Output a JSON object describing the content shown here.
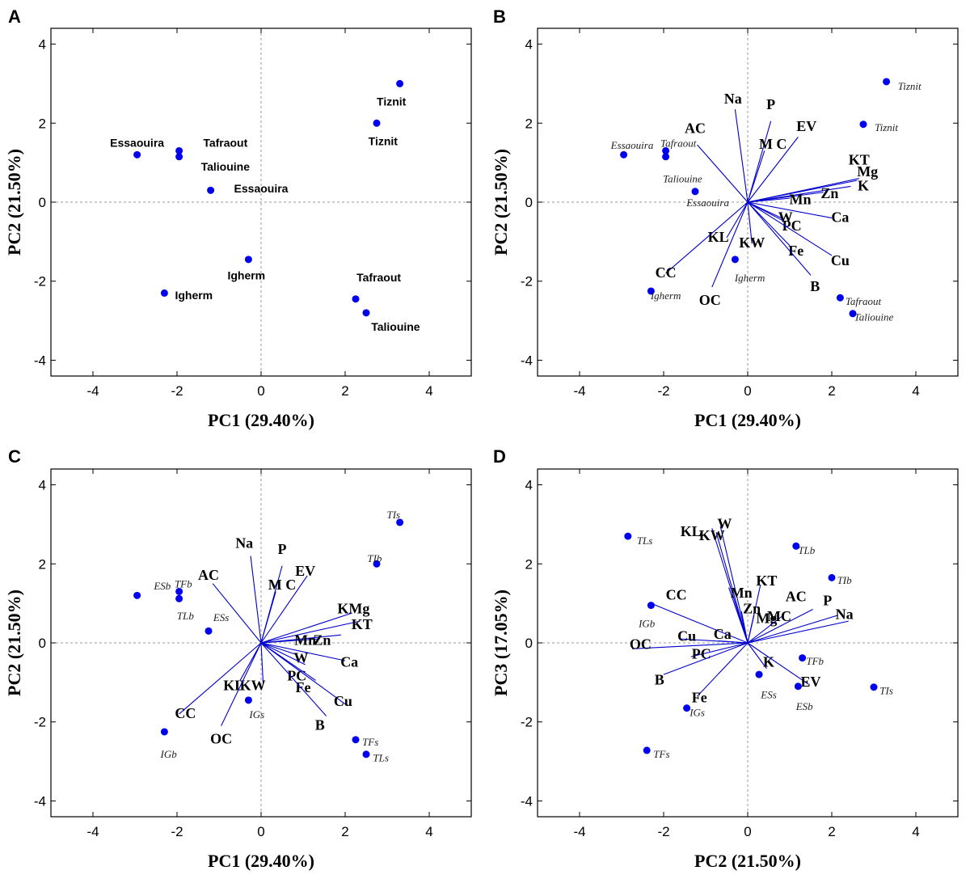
{
  "chart_data": [
    {
      "panel": "A",
      "type": "scatter",
      "xlabel": "PC1 (29.40%)",
      "ylabel": "PC2 (21.50%)",
      "xlim": [
        -5,
        5
      ],
      "ylim": [
        -4.4,
        4.4
      ],
      "xticks": [
        -4,
        -2,
        0,
        2,
        4
      ],
      "yticks": [
        -4,
        -2,
        0,
        2,
        4
      ],
      "point_color": "#0000ee",
      "vector_color": "#0000cc",
      "label_style": "sans",
      "points": [
        {
          "x": 3.3,
          "y": 3.0,
          "label": "Tiznit",
          "lx": 3.1,
          "ly": 2.55
        },
        {
          "x": 2.75,
          "y": 2.0,
          "label": "Tiznit",
          "lx": 2.9,
          "ly": 1.55
        },
        {
          "x": -2.95,
          "y": 1.2,
          "label": "Essaouira",
          "lx": -2.95,
          "ly": 1.5
        },
        {
          "x": -1.95,
          "y": 1.3,
          "label": "Tafraout",
          "lx": -0.85,
          "ly": 1.5
        },
        {
          "x": -1.95,
          "y": 1.15,
          "label": "Taliouine",
          "lx": -0.85,
          "ly": 0.9
        },
        {
          "x": -1.2,
          "y": 0.3,
          "label": "Essaouira",
          "lx": 0.0,
          "ly": 0.35
        },
        {
          "x": -0.3,
          "y": -1.45,
          "label": "Igherm",
          "lx": -0.35,
          "ly": -1.85
        },
        {
          "x": -2.3,
          "y": -2.3,
          "label": "Igherm",
          "lx": -1.6,
          "ly": -2.35
        },
        {
          "x": 2.25,
          "y": -2.45,
          "label": "Tafraout",
          "lx": 2.8,
          "ly": -1.9
        },
        {
          "x": 2.5,
          "y": -2.8,
          "label": "Taliouine",
          "lx": 3.2,
          "ly": -3.15
        }
      ],
      "vectors": []
    },
    {
      "panel": "B",
      "type": "biplot",
      "xlabel": "PC1 (29.40%)",
      "ylabel": "PC2 (21.50%)",
      "xlim": [
        -5,
        5
      ],
      "ylim": [
        -4.4,
        4.4
      ],
      "xticks": [
        -4,
        -2,
        0,
        2,
        4
      ],
      "yticks": [
        -4,
        -2,
        0,
        2,
        4
      ],
      "point_color": "#0000ee",
      "vector_color": "#0000cc",
      "label_style": "italic",
      "points": [
        {
          "x": 3.3,
          "y": 3.05,
          "label": "Tiznit",
          "lx": 3.85,
          "ly": 2.95
        },
        {
          "x": 2.75,
          "y": 1.97,
          "label": "Tiznit",
          "lx": 3.3,
          "ly": 1.9
        },
        {
          "x": -2.95,
          "y": 1.2,
          "label": "Essaouira",
          "lx": -2.75,
          "ly": 1.45
        },
        {
          "x": -1.95,
          "y": 1.3,
          "label": "Tafraout",
          "lx": -1.65,
          "ly": 1.5
        },
        {
          "x": -1.95,
          "y": 1.15,
          "label": "Taliouine",
          "lx": -1.55,
          "ly": 0.6
        },
        {
          "x": -1.25,
          "y": 0.27,
          "label": "Essaouira",
          "lx": -0.95,
          "ly": 0.0
        },
        {
          "x": -0.3,
          "y": -1.45,
          "label": "Igherm",
          "lx": 0.05,
          "ly": -1.9
        },
        {
          "x": -2.3,
          "y": -2.25,
          "label": "Igherm",
          "lx": -1.95,
          "ly": -2.35
        },
        {
          "x": 2.2,
          "y": -2.42,
          "label": "Tafraout",
          "lx": 2.75,
          "ly": -2.5
        },
        {
          "x": 2.5,
          "y": -2.82,
          "label": "Taliouine",
          "lx": 3.0,
          "ly": -2.9
        }
      ],
      "vectors": [
        {
          "name": "Na",
          "x": -0.3,
          "y": 2.35,
          "lx": -0.35,
          "ly": 2.5
        },
        {
          "name": "P",
          "x": 0.55,
          "y": 2.05,
          "lx": 0.55,
          "ly": 2.35
        },
        {
          "name": "EV",
          "x": 1.2,
          "y": 1.65,
          "lx": 1.4,
          "ly": 1.8
        },
        {
          "name": "AC",
          "x": -1.2,
          "y": 1.45,
          "lx": -1.25,
          "ly": 1.75
        },
        {
          "name": "M C",
          "x": 0.4,
          "y": 1.3,
          "lx": 0.6,
          "ly": 1.35
        },
        {
          "name": "KT",
          "x": 2.6,
          "y": 0.55,
          "lx": 2.65,
          "ly": 0.95
        },
        {
          "name": "Mg",
          "x": 2.65,
          "y": 0.6,
          "lx": 2.85,
          "ly": 0.65
        },
        {
          "name": "K",
          "x": 2.45,
          "y": 0.4,
          "lx": 2.75,
          "ly": 0.3
        },
        {
          "name": "Zn",
          "x": 1.8,
          "y": 0.25,
          "lx": 1.95,
          "ly": 0.1
        },
        {
          "name": "Mn",
          "x": 1.0,
          "y": 0.1,
          "lx": 1.25,
          "ly": -0.05
        },
        {
          "name": "Ca",
          "x": 2.0,
          "y": -0.4,
          "lx": 2.2,
          "ly": -0.5
        },
        {
          "name": "W",
          "x": 0.8,
          "y": -0.4,
          "lx": 0.9,
          "ly": -0.5
        },
        {
          "name": "PC",
          "x": 0.9,
          "y": -0.5,
          "lx": 1.05,
          "ly": -0.72
        },
        {
          "name": "Cu",
          "x": 2.0,
          "y": -1.35,
          "lx": 2.2,
          "ly": -1.6
        },
        {
          "name": "Fe",
          "x": 1.0,
          "y": -1.1,
          "lx": 1.15,
          "ly": -1.35
        },
        {
          "name": "B",
          "x": 1.5,
          "y": -1.85,
          "lx": 1.6,
          "ly": -2.25
        },
        {
          "name": "KW",
          "x": 0.1,
          "y": -1.05,
          "lx": 0.1,
          "ly": -1.15
        },
        {
          "name": "KL",
          "x": -0.5,
          "y": -0.9,
          "lx": -0.7,
          "ly": -1.0
        },
        {
          "name": "CC",
          "x": -1.95,
          "y": -1.8,
          "lx": -1.95,
          "ly": -1.9
        },
        {
          "name": "OC",
          "x": -0.85,
          "y": -2.15,
          "lx": -0.9,
          "ly": -2.6
        }
      ]
    },
    {
      "panel": "C",
      "type": "biplot",
      "xlabel": "PC1 (29.40%)",
      "ylabel": "PC2 (21.50%)",
      "xlim": [
        -5,
        5
      ],
      "ylim": [
        -4.4,
        4.4
      ],
      "xticks": [
        -4,
        -2,
        0,
        2,
        4
      ],
      "yticks": [
        -4,
        -2,
        0,
        2,
        4
      ],
      "point_color": "#0000ee",
      "vector_color": "#0000cc",
      "label_style": "italic",
      "points": [
        {
          "x": 3.3,
          "y": 3.05,
          "label": "TIs",
          "lx": 3.15,
          "ly": 3.25
        },
        {
          "x": 2.75,
          "y": 2.0,
          "label": "TIb",
          "lx": 2.7,
          "ly": 2.15
        },
        {
          "x": -2.95,
          "y": 1.2,
          "label": "ESb",
          "lx": -2.35,
          "ly": 1.45
        },
        {
          "x": -1.95,
          "y": 1.3,
          "label": "TFb",
          "lx": -1.85,
          "ly": 1.5
        },
        {
          "x": -1.95,
          "y": 1.12,
          "label": "TLb",
          "lx": -1.8,
          "ly": 0.7
        },
        {
          "x": -1.25,
          "y": 0.3,
          "label": "ESs",
          "lx": -0.95,
          "ly": 0.65
        },
        {
          "x": -0.3,
          "y": -1.45,
          "label": "IGs",
          "lx": -0.1,
          "ly": -1.8
        },
        {
          "x": -2.3,
          "y": -2.25,
          "label": "IGb",
          "lx": -2.2,
          "ly": -2.8
        },
        {
          "x": 2.25,
          "y": -2.45,
          "label": "TFs",
          "lx": 2.6,
          "ly": -2.5
        },
        {
          "x": 2.5,
          "y": -2.82,
          "label": "TLs",
          "lx": 2.85,
          "ly": -2.9
        }
      ],
      "vectors": [
        {
          "name": "Na",
          "x": -0.25,
          "y": 2.2,
          "lx": -0.4,
          "ly": 2.4
        },
        {
          "name": "P",
          "x": 0.5,
          "y": 1.95,
          "lx": 0.5,
          "ly": 2.25
        },
        {
          "name": "EV",
          "x": 1.1,
          "y": 1.7,
          "lx": 1.05,
          "ly": 1.7
        },
        {
          "name": "AC",
          "x": -1.15,
          "y": 1.5,
          "lx": -1.25,
          "ly": 1.6
        },
        {
          "name": "M C",
          "x": 0.35,
          "y": 1.3,
          "lx": 0.5,
          "ly": 1.35
        },
        {
          "name": "KMg",
          "x": 2.15,
          "y": 0.75,
          "lx": 2.2,
          "ly": 0.75
        },
        {
          "name": "KT",
          "x": 2.35,
          "y": 0.55,
          "lx": 2.4,
          "ly": 0.35
        },
        {
          "name": "Zn",
          "x": 1.9,
          "y": 0.2,
          "lx": 1.45,
          "ly": -0.05
        },
        {
          "name": "Mn",
          "x": 1.35,
          "y": 0.1,
          "lx": 1.05,
          "ly": -0.05
        },
        {
          "name": "Ca",
          "x": 2.0,
          "y": -0.45,
          "lx": 2.1,
          "ly": -0.6
        },
        {
          "name": "W",
          "x": 0.85,
          "y": -0.3,
          "lx": 0.95,
          "ly": -0.5
        },
        {
          "name": "PC",
          "x": 1.05,
          "y": -0.55,
          "lx": 0.85,
          "ly": -0.95
        },
        {
          "name": "Fe",
          "x": 1.3,
          "y": -0.95,
          "lx": 1.0,
          "ly": -1.25
        },
        {
          "name": "Cu",
          "x": 2.0,
          "y": -1.55,
          "lx": 1.95,
          "ly": -1.6
        },
        {
          "name": "B",
          "x": 1.55,
          "y": -1.85,
          "lx": 1.4,
          "ly": -2.2
        },
        {
          "name": "KW",
          "x": 0.05,
          "y": -1.05,
          "lx": -0.2,
          "ly": -1.2
        },
        {
          "name": "KL",
          "x": -0.5,
          "y": -0.95,
          "lx": -0.65,
          "ly": -1.2
        },
        {
          "name": "CC",
          "x": -1.95,
          "y": -1.8,
          "lx": -1.8,
          "ly": -1.9
        },
        {
          "name": "OC",
          "x": -0.95,
          "y": -2.1,
          "lx": -0.95,
          "ly": -2.55
        }
      ]
    },
    {
      "panel": "D",
      "type": "biplot",
      "xlabel": "PC2 (21.50%)",
      "ylabel": "PC3 (17.05%)",
      "xlim": [
        -5,
        5
      ],
      "ylim": [
        -4.4,
        4.4
      ],
      "xticks": [
        -4,
        -2,
        0,
        2,
        4
      ],
      "yticks": [
        -4,
        -2,
        0,
        2,
        4
      ],
      "point_color": "#0000ee",
      "vector_color": "#0000cc",
      "label_style": "italic",
      "points": [
        {
          "x": -2.85,
          "y": 2.7,
          "label": "TLs",
          "lx": -2.45,
          "ly": 2.6
        },
        {
          "x": 1.15,
          "y": 2.45,
          "label": "TLb",
          "lx": 1.4,
          "ly": 2.35
        },
        {
          "x": 2.0,
          "y": 1.65,
          "label": "TIb",
          "lx": 2.3,
          "ly": 1.6
        },
        {
          "x": -2.3,
          "y": 0.95,
          "label": "IGb",
          "lx": -2.4,
          "ly": 0.5
        },
        {
          "x": 1.3,
          "y": -0.38,
          "label": "TFb",
          "lx": 1.6,
          "ly": -0.45
        },
        {
          "x": 0.27,
          "y": -0.8,
          "label": "ESs",
          "lx": 0.5,
          "ly": -1.3
        },
        {
          "x": 1.2,
          "y": -1.1,
          "label": "ESb",
          "lx": 1.35,
          "ly": -1.6
        },
        {
          "x": 3.0,
          "y": -1.12,
          "label": "TIs",
          "lx": 3.3,
          "ly": -1.2
        },
        {
          "x": -1.45,
          "y": -1.65,
          "label": "IGs",
          "lx": -1.2,
          "ly": -1.75
        },
        {
          "x": -2.4,
          "y": -2.72,
          "label": "TFs",
          "lx": -2.05,
          "ly": -2.8
        }
      ],
      "vectors": [
        {
          "name": "KL",
          "x": -0.85,
          "y": 2.9,
          "lx": -1.35,
          "ly": 2.7
        },
        {
          "name": "W",
          "x": -0.65,
          "y": 2.95,
          "lx": -0.55,
          "ly": 2.9
        },
        {
          "name": "KW",
          "x": -0.75,
          "y": 2.8,
          "lx": -0.85,
          "ly": 2.6
        },
        {
          "name": "Mn",
          "x": -0.45,
          "y": 1.4,
          "lx": -0.15,
          "ly": 1.15
        },
        {
          "name": "KT",
          "x": 0.3,
          "y": 1.45,
          "lx": 0.45,
          "ly": 1.45
        },
        {
          "name": "Zn",
          "x": -0.15,
          "y": 0.8,
          "lx": 0.1,
          "ly": 0.75
        },
        {
          "name": "Mg",
          "x": 0.15,
          "y": 0.7,
          "lx": 0.45,
          "ly": 0.5
        },
        {
          "name": "MC",
          "x": 0.85,
          "y": 0.7,
          "lx": 0.75,
          "ly": 0.55
        },
        {
          "name": "AC",
          "x": 1.55,
          "y": 0.85,
          "lx": 1.15,
          "ly": 1.05
        },
        {
          "name": "P",
          "x": 2.15,
          "y": 0.7,
          "lx": 1.9,
          "ly": 0.95
        },
        {
          "name": "Na",
          "x": 2.4,
          "y": 0.55,
          "lx": 2.3,
          "ly": 0.6
        },
        {
          "name": "CC",
          "x": -2.3,
          "y": 1.0,
          "lx": -1.7,
          "ly": 1.1
        },
        {
          "name": "Cu",
          "x": -1.6,
          "y": 0.1,
          "lx": -1.45,
          "ly": 0.05
        },
        {
          "name": "Ca",
          "x": -0.7,
          "y": 0.05,
          "lx": -0.6,
          "ly": 0.1
        },
        {
          "name": "PC",
          "x": -1.35,
          "y": -0.35,
          "lx": -1.1,
          "ly": -0.4
        },
        {
          "name": "OC",
          "x": -2.75,
          "y": -0.15,
          "lx": -2.55,
          "ly": -0.15
        },
        {
          "name": "K",
          "x": 0.45,
          "y": -0.65,
          "lx": 0.5,
          "ly": -0.6
        },
        {
          "name": "EV",
          "x": 1.45,
          "y": -1.05,
          "lx": 1.5,
          "ly": -1.1
        },
        {
          "name": "B",
          "x": -2.0,
          "y": -0.8,
          "lx": -2.1,
          "ly": -1.05
        },
        {
          "name": "Fe",
          "x": -1.2,
          "y": -1.35,
          "lx": -1.15,
          "ly": -1.5
        }
      ]
    }
  ]
}
